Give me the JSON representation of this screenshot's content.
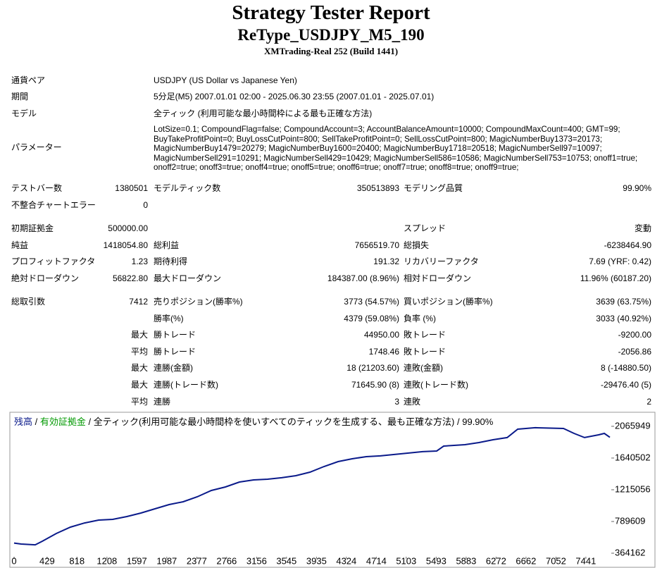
{
  "header": {
    "title": "Strategy Tester Report",
    "subtitle": "ReType_USDJPY_M5_190",
    "build": "XMTrading-Real 252 (Build 1441)"
  },
  "table": {
    "rows": [
      [
        "通貨ペア",
        "USDJPY (US Dollar vs Japanese Yen)"
      ],
      [
        "期間",
        "5分足(M5) 2007.01.01 02:00 - 2025.06.30 23:55 (2007.01.01 - 2025.07.01)"
      ],
      [
        "モデル",
        "全ティック (利用可能な最小時間枠による最も正確な方法)"
      ],
      [
        "パラメーター",
        "LotSize=0.1; CompoundFlag=false; CompoundAccount=3; AccountBalanceAmount=10000; CompoundMaxCount=400; GMT=99; BuyTakeProfitPoint=0; BuyLossCutPoint=800; SellTakeProfitPoint=0; SellLossCutPoint=800; MagicNumberBuy1373=20173; MagicNumberBuy1479=20279; MagicNumberBuy1600=20400; MagicNumberBuy1718=20518; MagicNumberSell97=10097; MagicNumberSell291=10291; MagicNumberSell429=10429; MagicNumberSell586=10586; MagicNumberSell753=10753; onoff1=true; onoff2=true; onoff3=true; onoff4=true; onoff5=true; onoff6=true; onoff7=true; onoff8=true; onoff9=true;"
      ],
      [
        "テストバー数",
        "1380501",
        "モデルティック数",
        "350513893",
        "モデリング品質",
        "99.90%"
      ],
      [
        "不整合チャートエラー",
        "0",
        null,
        null,
        null,
        null
      ],
      [
        "初期証拠金",
        "500000.00",
        null,
        null,
        "スプレッド",
        "変動"
      ],
      [
        "純益",
        "1418054.80",
        "総利益",
        "7656519.70",
        "総損失",
        "-6238464.90"
      ],
      [
        "プロフィットファクタ",
        "1.23",
        "期待利得",
        "191.32",
        "リカバリーファクタ",
        "7.69 (YRF: 0.42)"
      ],
      [
        "絶対ドローダウン",
        "56822.80",
        "最大ドローダウン",
        "184387.00 (8.96%)",
        "相対ドローダウン",
        "11.96% (60187.20)"
      ],
      [
        "総取引数",
        "7412",
        "売りポジション(勝率%)",
        "3773 (54.57%)",
        "買いポジション(勝率%)",
        "3639 (63.75%)"
      ],
      [
        null,
        null,
        "勝率(%)",
        "4379 (59.08%)",
        "負率 (%)",
        "3033 (40.92%)"
      ],
      [
        null,
        "最大",
        "勝トレード",
        "44950.00",
        "敗トレード",
        "-9200.00"
      ],
      [
        null,
        "平均",
        "勝トレード",
        "1748.46",
        "敗トレード",
        "-2056.86"
      ],
      [
        null,
        "最大",
        "連勝(金額)",
        "18 (21203.60)",
        "連敗(金額)",
        "8 (-14880.50)"
      ],
      [
        null,
        "最大",
        "連勝(トレード数)",
        "71645.90 (8)",
        "連敗(トレード数)",
        "-29476.40 (5)"
      ],
      [
        null,
        "平均",
        "連勝",
        "3",
        "連敗",
        "2"
      ]
    ]
  },
  "chart_data": {
    "type": "line",
    "legend_separator": " / ",
    "equity_label": "有効証拠金",
    "equity_color": "#009900",
    "caption": "全ティック(利用可能な最小時間枠を使いすべてのティックを生成する、最も正確な方法)",
    "quality": "99.90%",
    "x": [
      0,
      92,
      275,
      367,
      550,
      733,
      917,
      1100,
      1283,
      1467,
      1650,
      1833,
      2017,
      2200,
      2383,
      2567,
      2750,
      2933,
      3117,
      3300,
      3483,
      3667,
      3850,
      4033,
      4217,
      4400,
      4583,
      4767,
      4950,
      5133,
      5317,
      5500,
      5591,
      5867,
      6050,
      6233,
      6417,
      6554,
      6783,
      7150,
      7287,
      7424,
      7608,
      7681,
      7754
    ],
    "series": [
      {
        "name": "残高",
        "color": "#0a1a8a",
        "values": [
          500000,
          487000,
          477000,
          525000,
          629000,
          714000,
          770000,
          808000,
          818000,
          856000,
          903000,
          960000,
          1016000,
          1054000,
          1120000,
          1205000,
          1253000,
          1319000,
          1347000,
          1357000,
          1376000,
          1404000,
          1451000,
          1527000,
          1593000,
          1631000,
          1659000,
          1669000,
          1688000,
          1707000,
          1726000,
          1735000,
          1801000,
          1820000,
          1848000,
          1886000,
          1915000,
          2028000,
          2047000,
          2037000,
          1971000,
          1915000,
          1952000,
          1971000,
          1918000
        ]
      }
    ],
    "xlim": [
      -37,
      7772
    ],
    "xticks": [
      0,
      429,
      818,
      1208,
      1597,
      1987,
      2377,
      2766,
      3156,
      3545,
      3935,
      4324,
      4714,
      5103,
      5493,
      5883,
      6272,
      6662,
      7052,
      7441
    ],
    "ylim": [
      317000,
      2226000
    ],
    "yticks": [
      364162,
      789609,
      1215056,
      1640502,
      2065949
    ]
  }
}
